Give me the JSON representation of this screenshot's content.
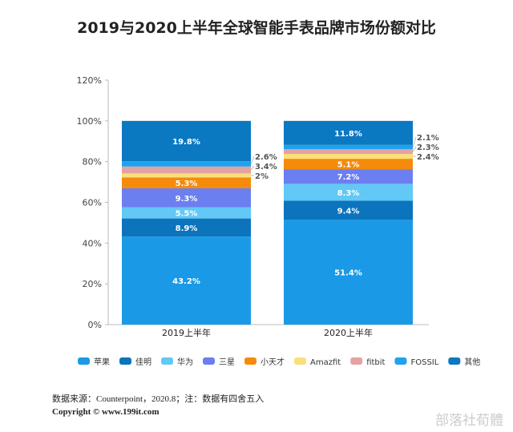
{
  "title": "2019与2020上半年全球智能手表品牌市场份额对比",
  "chart_data": {
    "type": "bar",
    "stacked": true,
    "title": "2019与2020上半年全球智能手表品牌市场份额对比",
    "categories": [
      "2019上半年",
      "2020上半年"
    ],
    "ylim": [
      0,
      120
    ],
    "yticks": [
      "0%",
      "20%",
      "40%",
      "60%",
      "80%",
      "100%",
      "120%"
    ],
    "legend_position": "bottom",
    "grid": false,
    "series": [
      {
        "name": "苹果",
        "color": "#1a9ae6",
        "values": [
          43.2,
          51.4
        ],
        "labels": [
          "43.2%",
          "51.4%"
        ]
      },
      {
        "name": "佳明",
        "color": "#0b74bd",
        "values": [
          8.9,
          9.4
        ],
        "labels": [
          "8.9%",
          "9.4%"
        ]
      },
      {
        "name": "华为",
        "color": "#62c8f5",
        "values": [
          5.5,
          8.3
        ],
        "labels": [
          "5.5%",
          "8.3%"
        ]
      },
      {
        "name": "三星",
        "color": "#6b7ff0",
        "values": [
          9.3,
          7.2
        ],
        "labels": [
          "9.3%",
          "7.2%"
        ]
      },
      {
        "name": "小天才",
        "color": "#f58a0b",
        "values": [
          5.3,
          5.1
        ],
        "labels": [
          "5.3%",
          "5.1%"
        ]
      },
      {
        "name": "Amazfit",
        "color": "#f9e07a",
        "values": [
          2.0,
          2.4
        ],
        "labels": [
          "2%",
          "2.4%"
        ]
      },
      {
        "name": "fitbit",
        "color": "#e4a2a2",
        "values": [
          3.4,
          2.3
        ],
        "labels": [
          "3.4%",
          "2.3%"
        ]
      },
      {
        "name": "FOSSIL",
        "color": "#1ea3ec",
        "values": [
          2.6,
          2.1
        ],
        "labels": [
          "2.6%",
          "2.1%"
        ]
      },
      {
        "name": "其他",
        "color": "#0b78c2",
        "values": [
          19.8,
          11.8
        ],
        "labels": [
          "19.8%",
          "11.8%"
        ]
      }
    ]
  },
  "source": "数据来源：Counterpoint，2020.8；注：数据有四舍五入",
  "copyright": "Copyright ©    www.199it.com",
  "watermark": "部落社荀體"
}
